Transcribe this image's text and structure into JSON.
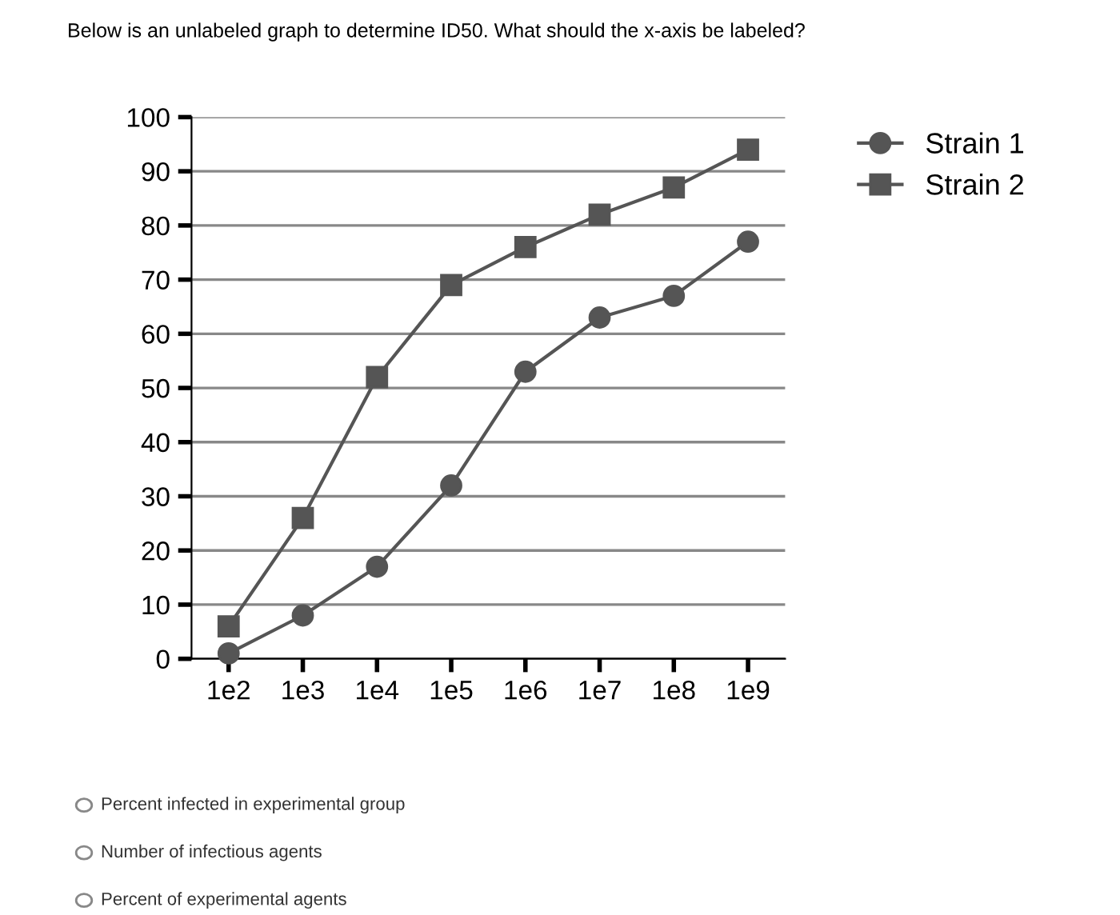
{
  "chart_data": {
    "type": "line",
    "title": "Below is an unlabeled graph to determine ID50. What should the x-axis be labeled?",
    "categories": [
      "1e2",
      "1e3",
      "1e4",
      "1e5",
      "1e6",
      "1e7",
      "1e8",
      "1e9"
    ],
    "series": [
      {
        "name": "Strain 1",
        "color": "#555555",
        "marker": "circle",
        "values": [
          1,
          8,
          17,
          32,
          53,
          63,
          67,
          77
        ]
      },
      {
        "name": "Strain 2",
        "color": "#555555",
        "marker": "square",
        "values": [
          6,
          26,
          52,
          69,
          76,
          82,
          87,
          94
        ]
      }
    ],
    "ylim": [
      0,
      100
    ],
    "yticks": [
      0,
      10,
      20,
      30,
      40,
      50,
      60,
      70,
      80,
      90,
      100
    ],
    "grid": "y",
    "legend": "top right",
    "line_style": "solid",
    "annotations": [
      "Percent infected in experimental group",
      "Number of infectious agents",
      "Percent of experimental agents"
    ]
  }
}
